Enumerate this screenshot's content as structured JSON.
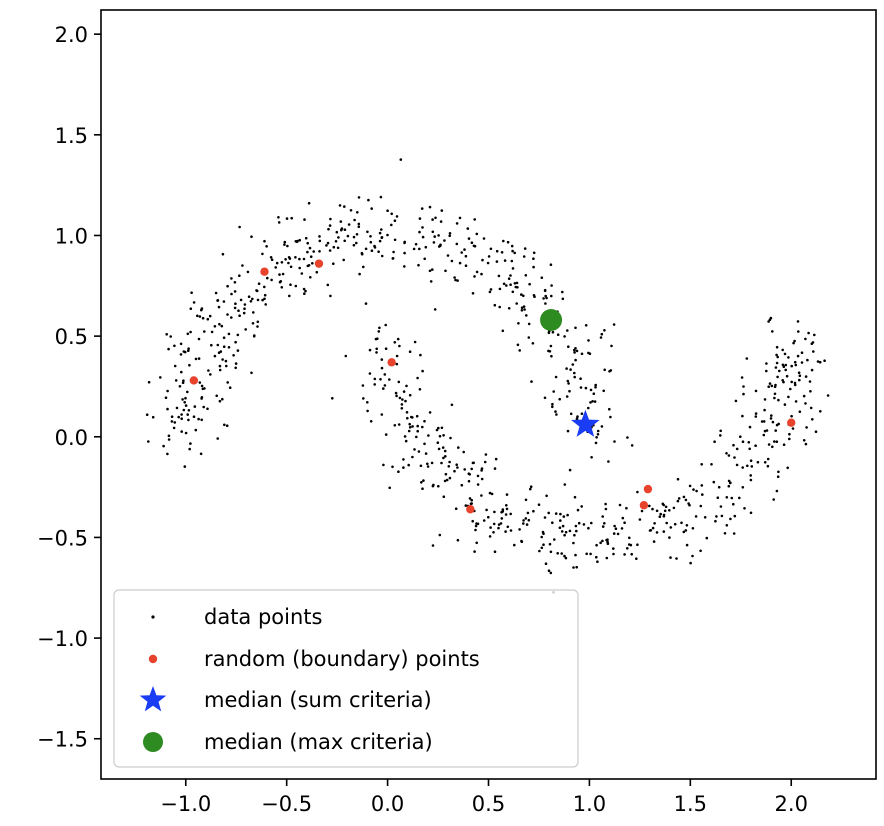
{
  "chart_data": {
    "type": "scatter",
    "title": "",
    "xlabel": "",
    "ylabel": "",
    "xlim": [
      -1.42,
      2.42
    ],
    "ylim": [
      -1.7,
      2.12
    ],
    "x_ticks": [
      -1.0,
      -0.5,
      0.0,
      0.5,
      1.0,
      1.5,
      2.0
    ],
    "x_tick_labels": [
      "−1.0",
      "−0.5",
      "0.0",
      "0.5",
      "1.0",
      "1.5",
      "2.0"
    ],
    "y_ticks": [
      -1.5,
      -1.0,
      -0.5,
      0.0,
      0.5,
      1.0,
      1.5,
      2.0
    ],
    "y_tick_labels": [
      "−1.5",
      "−1.0",
      "−0.5",
      "0.0",
      "0.5",
      "1.0",
      "1.5",
      "2.0"
    ],
    "grid": false,
    "legend_position": "lower-left",
    "legend": [
      {
        "label": "data points",
        "marker": "dot",
        "color": "#000000"
      },
      {
        "label": "random (boundary) points",
        "marker": "circle-small",
        "color": "#e8432d"
      },
      {
        "label": "median (sum criteria)",
        "marker": "star",
        "color": "#1a3cf5"
      },
      {
        "label": "median (max criteria)",
        "marker": "circle-large",
        "color": "#2e8b22"
      }
    ],
    "series": [
      {
        "name": "data points",
        "kind": "two-moons",
        "color": "#000000",
        "n_points": 1000,
        "noise": 0.1,
        "upper_moon": {
          "center": [
            0.0,
            0.0
          ],
          "radius": 1.0,
          "angle_range_deg": [
            0,
            180
          ]
        },
        "lower_moon": {
          "center": [
            1.0,
            0.5
          ],
          "radius": 1.0,
          "angle_range_deg": [
            180,
            360
          ]
        }
      },
      {
        "name": "random (boundary) points",
        "color": "#e8432d",
        "points": [
          [
            -0.61,
            0.82
          ],
          [
            -0.34,
            0.86
          ],
          [
            -0.96,
            0.28
          ],
          [
            0.02,
            0.37
          ],
          [
            0.41,
            -0.36
          ],
          [
            1.27,
            -0.34
          ],
          [
            1.29,
            -0.26
          ],
          [
            2.0,
            0.07
          ]
        ]
      },
      {
        "name": "median (sum criteria)",
        "color": "#1a3cf5",
        "points": [
          [
            0.98,
            0.06
          ]
        ]
      },
      {
        "name": "median (max criteria)",
        "color": "#2e8b22",
        "points": [
          [
            0.81,
            0.58
          ]
        ]
      }
    ]
  }
}
